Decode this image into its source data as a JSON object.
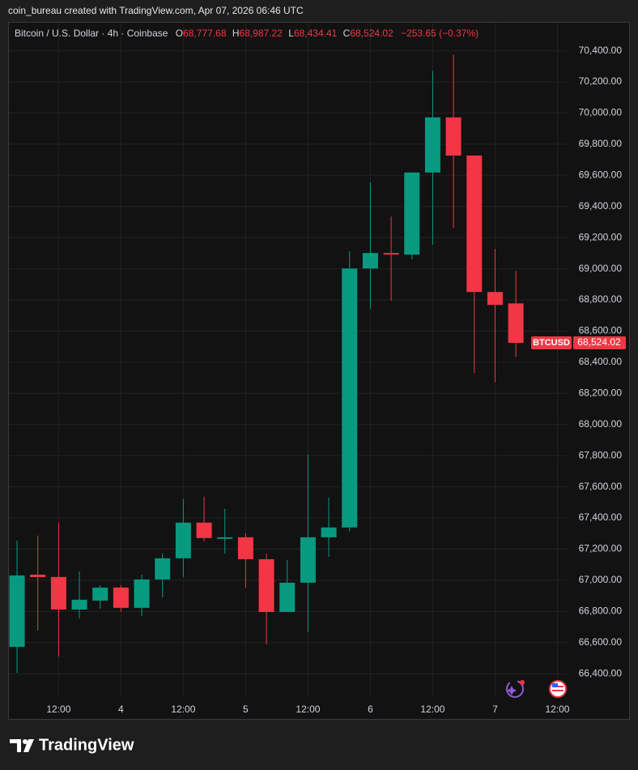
{
  "attribution": "coin_bureau created with TradingView.com, Apr 07, 2026 06:46 UTC",
  "footer": {
    "brand": "TradingView"
  },
  "chart_data": {
    "type": "candlestick",
    "title": "Bitcoin / U.S. Dollar · 4h · Coinbase",
    "header": {
      "open_key": "O",
      "open": "68,777.68",
      "high_key": "H",
      "high": "68,987.22",
      "low_key": "L",
      "low": "68,434.41",
      "close_key": "C",
      "close": "68,524.02",
      "change": "−253.65 (−0.37%)"
    },
    "last_price": {
      "symbol": "BTCUSD",
      "label": "68,524.02"
    },
    "up_color": "#089981",
    "down_color": "#f23645",
    "categories": [
      null,
      null,
      "12:00",
      null,
      null,
      "4",
      null,
      null,
      "12:00",
      null,
      null,
      "5",
      null,
      null,
      "12:00",
      null,
      null,
      "6",
      null,
      null,
      "12:00",
      null,
      null,
      "7",
      null,
      null,
      "12:00"
    ],
    "open": [
      66572,
      67036,
      67021,
      66812,
      66869,
      66953,
      66823,
      67005,
      67141,
      67370,
      67266,
      67276,
      67135,
      66796,
      66984,
      67276,
      67339,
      69002,
      69101,
      69091,
      69618,
      69972,
      69727,
      68851,
      68777.68,
      null,
      null
    ],
    "high": [
      67255,
      67287,
      67370,
      67057,
      66969,
      66969,
      67036,
      67172,
      67521,
      67537,
      67459,
      67302,
      67172,
      67130,
      67808,
      67532,
      69112,
      69555,
      69336,
      69620,
      70270,
      70374,
      69727,
      69128,
      68987.22,
      null,
      null
    ],
    "low": [
      66405,
      66677,
      66510,
      66755,
      66817,
      66797,
      66770,
      66890,
      67021,
      67250,
      67172,
      66953,
      66588,
      66796,
      66666,
      67150,
      67313,
      68742,
      68794,
      69060,
      69154,
      69263,
      68330,
      68272,
      68434.41,
      null,
      null
    ],
    "close": [
      67031,
      67020,
      66812,
      66875,
      66953,
      66823,
      67005,
      67141,
      67370,
      67271,
      67276,
      67135,
      66796,
      66984,
      67276,
      67339,
      69002,
      69101,
      69091,
      69618,
      69972,
      69727,
      68851,
      68768,
      68524.02,
      null,
      null
    ],
    "ylim": [
      66250,
      70580
    ],
    "yticks": [
      {
        "value": 66400,
        "label": "66,400.00"
      },
      {
        "value": 66600,
        "label": "66,600.00"
      },
      {
        "value": 66800,
        "label": "66,800.00"
      },
      {
        "value": 67000,
        "label": "67,000.00"
      },
      {
        "value": 67200,
        "label": "67,200.00"
      },
      {
        "value": 67400,
        "label": "67,400.00"
      },
      {
        "value": 67600,
        "label": "67,600.00"
      },
      {
        "value": 67800,
        "label": "67,800.00"
      },
      {
        "value": 68000,
        "label": "68,000.00"
      },
      {
        "value": 68200,
        "label": "68,200.00"
      },
      {
        "value": 68400,
        "label": "68,400.00"
      },
      {
        "value": 68600,
        "label": "68,600.00"
      },
      {
        "value": 68800,
        "label": "68,800.00"
      },
      {
        "value": 69000,
        "label": "69,000.00"
      },
      {
        "value": 69200,
        "label": "69,200.00"
      },
      {
        "value": 69400,
        "label": "69,400.00"
      },
      {
        "value": 69600,
        "label": "69,600.00"
      },
      {
        "value": 69800,
        "label": "69,800.00"
      },
      {
        "value": 70000,
        "label": "70,000.00"
      },
      {
        "value": 70200,
        "label": "70,200.00"
      },
      {
        "value": 70400,
        "label": "70,400.00"
      }
    ],
    "grid": true
  }
}
